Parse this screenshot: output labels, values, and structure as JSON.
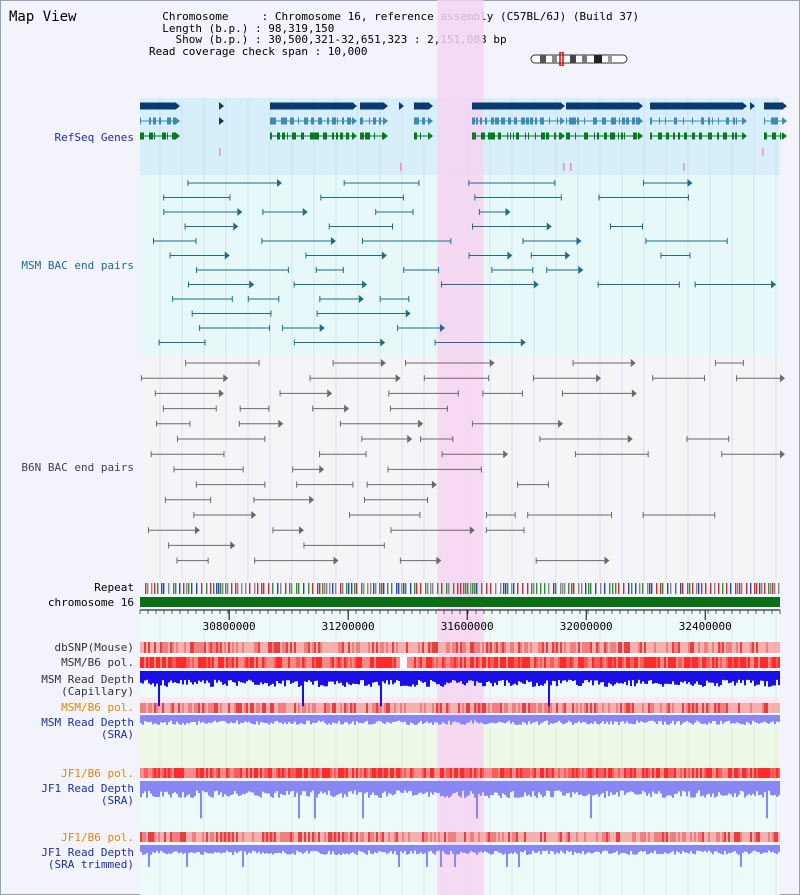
{
  "view": {
    "title": "Map View",
    "info_lines": [
      "  Chromosome     : Chromosome 16, reference assembly (C57BL/6J) (Build 37)",
      "  Length (b.p.) : 98,319,150",
      "    Show (b.p.) : 30,500,321-32,651,323 : 2,151,003 bp",
      "Read coverage check span : 10,000"
    ]
  },
  "tracks": {
    "refseq": "RefSeq Genes",
    "msm_bac": "MSM BAC end pairs",
    "b6n_bac": "B6N BAC end pairs",
    "repeat": "Repeat",
    "chromosome": "chromosome 16",
    "dbsnp": "dbSNP(Mouse)",
    "msm_pol1": "MSM/B6 pol.",
    "msm_depth_cap_1": "MSM Read Depth",
    "msm_depth_cap_2": "(Capillary)",
    "msm_pol2": "MSM/B6 pol.",
    "msm_depth_sra_1": "MSM Read Depth",
    "msm_depth_sra_2": "(SRA)",
    "jf1_pol1": "JF1/B6 pol.",
    "jf1_depth_sra_1": "JF1 Read Depth",
    "jf1_depth_sra_2": "(SRA)",
    "jf1_pol2": "JF1/B6 pol.",
    "jf1_depth_trim_1": "JF1 Read Depth",
    "jf1_depth_trim_2": "(SRA trimmed)"
  },
  "axis": {
    "range_bp": [
      30500321,
      32651323
    ],
    "ticks": [
      {
        "bp": 30800000,
        "label": "30800000"
      },
      {
        "bp": 31200000,
        "label": "31200000"
      },
      {
        "bp": 31600000,
        "label": "31600000"
      },
      {
        "bp": 32000000,
        "label": "32000000"
      },
      {
        "bp": 32400000,
        "label": "32400000"
      }
    ]
  },
  "highlight_bp": [
    31500000,
    31655000
  ],
  "colors": {
    "refseq_bg": "#d7eefb",
    "msm_bg": "#e6f8f8",
    "b6n_bg": "#f5f5f8",
    "highlight": "#f7d4f2",
    "gene_top": "#0b3a6e",
    "gene_mid": "#3d8bb3",
    "gene_green": "#0a7a1e",
    "msm_pair": "#1f6c88",
    "b6n_pair": "#6a6a6a",
    "label_blue": "#1a2fa8",
    "label_orange": "#e08a00",
    "chromosome": "#0a6e14",
    "depth_dark": "#1a10e6",
    "depth_light": "#8a86f3"
  }
}
